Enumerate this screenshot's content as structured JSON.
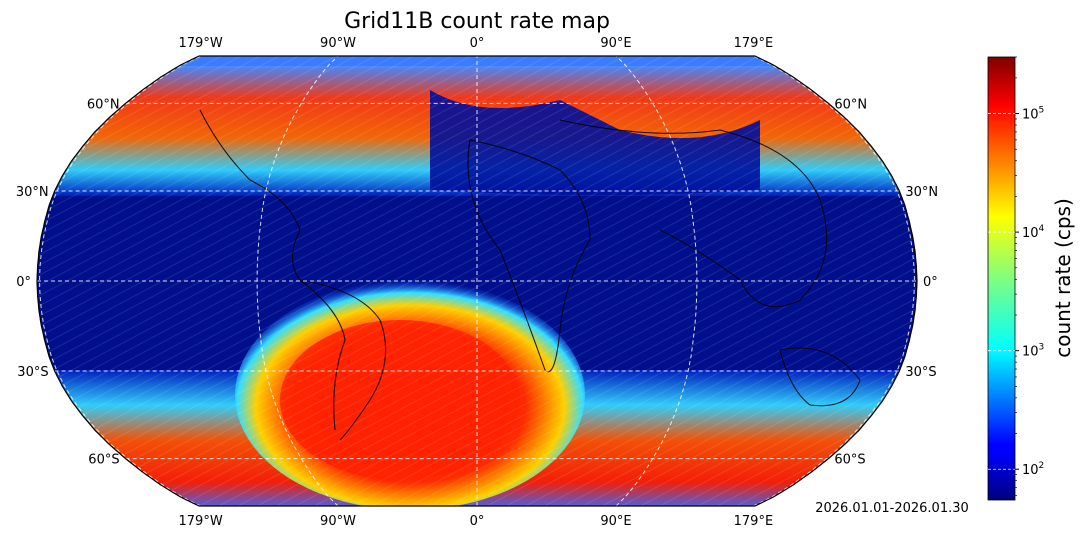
{
  "title": "Grid11B count rate map",
  "date_range": "2026.01.01-2026.01.30",
  "longitude_labels": [
    "179°W",
    "90°W",
    "0°",
    "90°E",
    "179°E"
  ],
  "latitude_labels": {
    "left": [
      "60°N",
      "30°N",
      "0°",
      "30°S",
      "60°S"
    ],
    "right": [
      "60°N",
      "30°N",
      "0°",
      "30°S",
      "60°S"
    ]
  },
  "colorbar": {
    "label": "count rate (cps)",
    "scale": "log",
    "colormap": "jet",
    "range_cps": [
      55,
      300000
    ],
    "ticks": [
      {
        "value": 100,
        "base": "10",
        "exp": "2"
      },
      {
        "value": 1000,
        "base": "10",
        "exp": "3"
      },
      {
        "value": 10000,
        "base": "10",
        "exp": "4"
      },
      {
        "value": 100000,
        "base": "10",
        "exp": "5"
      }
    ]
  },
  "map_features": {
    "projection": "Robinson",
    "gridlines": true,
    "coastlines": true,
    "high_count_regions": [
      "northern high-latitude belt",
      "South Atlantic Anomaly",
      "southern high-latitude belt"
    ]
  },
  "colors": {
    "low": "#00007f",
    "background_field": "#00108c",
    "high": "#ff2000",
    "grid": "#ffffff",
    "coastline": "#000000"
  }
}
